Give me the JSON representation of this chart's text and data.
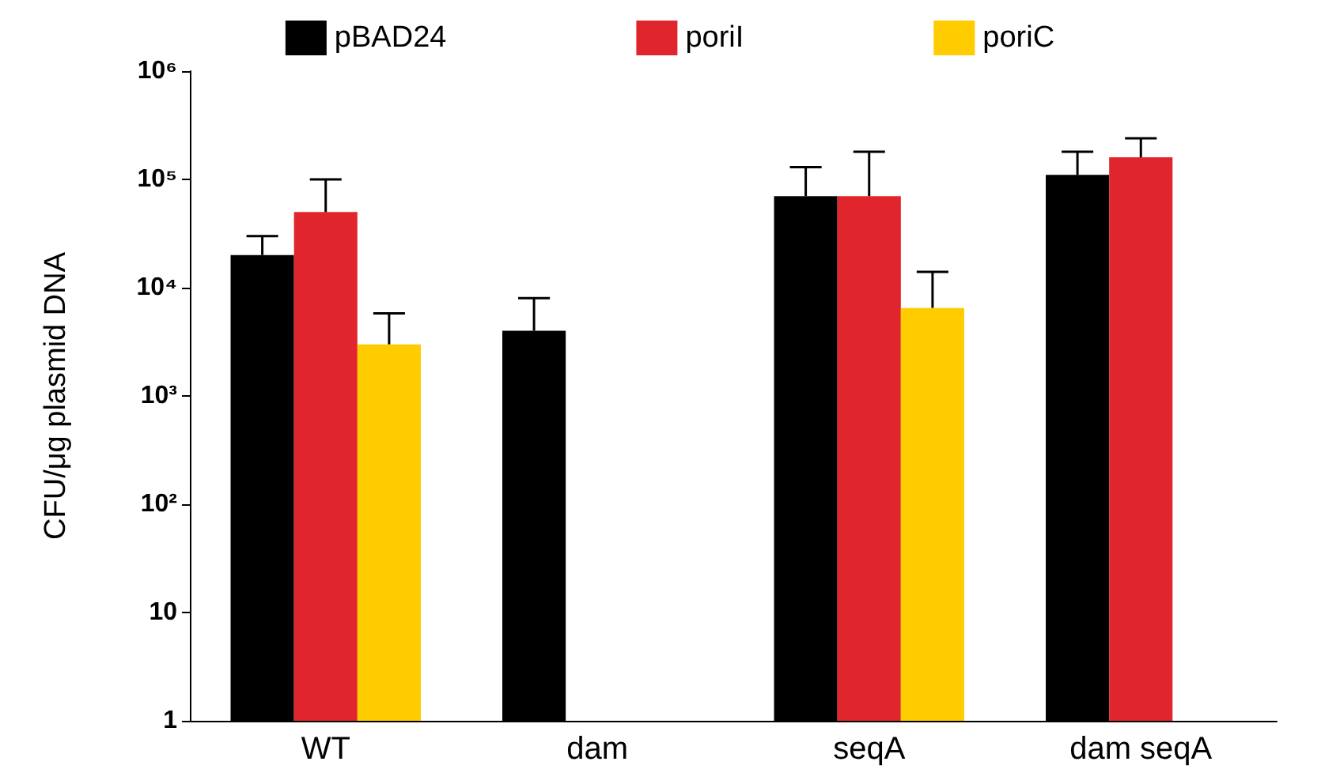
{
  "chart_data": {
    "type": "bar",
    "ylabel": "CFU/μg plasmid DNA",
    "categories": [
      "WT",
      "dam",
      "seqA",
      "dam seqA"
    ],
    "series": [
      {
        "name": "pBAD24",
        "color": "#000000",
        "values": [
          20000,
          4000,
          70000,
          110000
        ],
        "errors": [
          [
            20000,
            30000
          ],
          [
            4000,
            8000
          ],
          [
            70000,
            130000
          ],
          [
            110000,
            180000
          ]
        ]
      },
      {
        "name": "poriI",
        "color": "#e0262c",
        "values": [
          50000,
          1,
          70000,
          160000
        ],
        "errors": [
          [
            50000,
            100000
          ],
          null,
          [
            70000,
            180000
          ],
          [
            160000,
            240000
          ]
        ]
      },
      {
        "name": "poriC",
        "color": "#ffcc00",
        "values": [
          3000,
          1,
          6500,
          1
        ],
        "errors": [
          [
            3000,
            5800
          ],
          null,
          [
            6500,
            14000
          ],
          null
        ]
      }
    ],
    "log": "y",
    "ylim": [
      1,
      1000000
    ],
    "yticks": [
      1,
      10,
      {
        "value": 100,
        "label": "10²"
      },
      {
        "value": 1000,
        "label": "10³"
      },
      {
        "value": 10000,
        "label": "10⁴"
      },
      {
        "value": 100000,
        "label": "10⁵"
      },
      {
        "value": 1000000,
        "label": "10⁶"
      }
    ],
    "legend": "top",
    "grid": false
  }
}
